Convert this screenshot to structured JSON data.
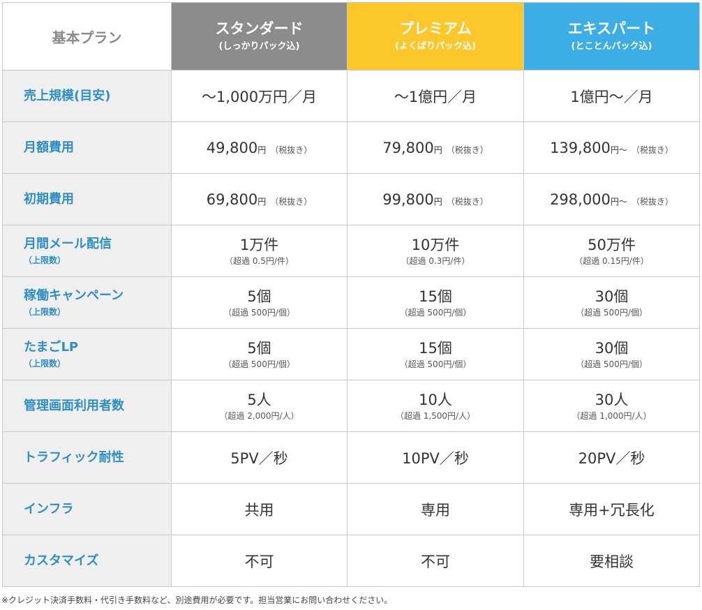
{
  "header": {
    "corner_label": "基本プラン",
    "plans": [
      {
        "name": "スタンダード",
        "sub": "(しっかりパック込)",
        "color": "#8c8c8c"
      },
      {
        "name": "プレミアム",
        "sub": "(よくばりパック込)",
        "color": "#fcc72a"
      },
      {
        "name": "エキスパート",
        "sub": "(とことんパック込)",
        "color": "#3daee5"
      }
    ]
  },
  "rows": {
    "scale": {
      "label": "売上規模(目安)",
      "values": [
        "〜1,000万円／月",
        "〜1億円／月",
        "1億円〜／月"
      ]
    },
    "monthly": {
      "label": "月額費用",
      "values": [
        {
          "num": "49,800",
          "unit": "円",
          "note": "（税抜き）"
        },
        {
          "num": "79,800",
          "unit": "円",
          "note": "（税抜き）"
        },
        {
          "num": "139,800",
          "unit": "円〜",
          "note": "（税抜き）"
        }
      ]
    },
    "initial": {
      "label": "初期費用",
      "values": [
        {
          "num": "69,800",
          "unit": "円",
          "note": "（税抜き）"
        },
        {
          "num": "99,800",
          "unit": "円",
          "note": "（税抜き）"
        },
        {
          "num": "298,000",
          "unit": "円〜",
          "note": "（税抜き）"
        }
      ]
    },
    "mail": {
      "label": "月間メール配信",
      "sub": "（上限数）",
      "values": [
        {
          "main": "1万件",
          "sub": "（超過 0.5円/件）"
        },
        {
          "main": "10万件",
          "sub": "（超過 0.3円/件）"
        },
        {
          "main": "50万件",
          "sub": "（超過 0.15円/件）"
        }
      ]
    },
    "campaign": {
      "label": "稼働キャンペーン",
      "sub": "（上限数）",
      "values": [
        {
          "main": "5個",
          "sub": "（超過 500円/個）"
        },
        {
          "main": "15個",
          "sub": "（超過 500円/個）"
        },
        {
          "main": "30個",
          "sub": "（超過 500円/個）"
        }
      ]
    },
    "lp": {
      "label": "たまごLP",
      "sub": "（上限数）",
      "values": [
        {
          "main": "5個",
          "sub": "（超過 500円/個）"
        },
        {
          "main": "15個",
          "sub": "（超過 500円/個）"
        },
        {
          "main": "30個",
          "sub": "（超過 500円/個）"
        }
      ]
    },
    "users": {
      "label": "管理画面利用者数",
      "values": [
        {
          "main": "5人",
          "sub": "（超過 2,000円/人）"
        },
        {
          "main": "10人",
          "sub": "（超過 1,500円/人）"
        },
        {
          "main": "30人",
          "sub": "（超過 1,000円/人）"
        }
      ]
    },
    "traffic": {
      "label": "トラフィック耐性",
      "values": [
        "5PV／秒",
        "10PV／秒",
        "20PV／秒"
      ]
    },
    "infra": {
      "label": "インフラ",
      "values": [
        "共用",
        "専用",
        "専用+冗長化"
      ]
    },
    "custom": {
      "label": "カスタマイズ",
      "values": [
        "不可",
        "不可",
        "要相談"
      ]
    }
  },
  "footnote": "※クレジット決済手数料・代引き手数料など、別途費用が必要です。担当営業にお問い合わせください。"
}
